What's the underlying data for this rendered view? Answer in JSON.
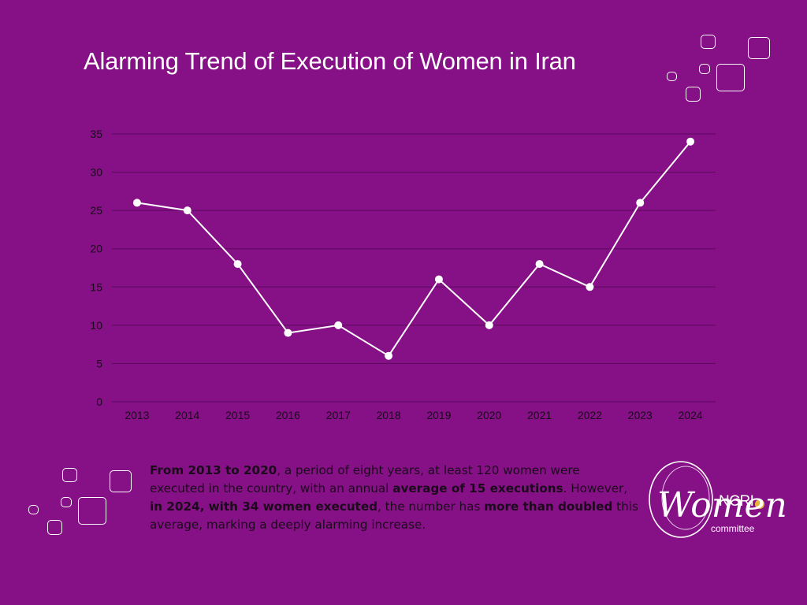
{
  "chart_data": {
    "type": "line",
    "title": "Alarming Trend of Execution of Women in Iran",
    "categories": [
      "2013",
      "2014",
      "2015",
      "2016",
      "2017",
      "2018",
      "2019",
      "2020",
      "2021",
      "2022",
      "2023",
      "2024"
    ],
    "values": [
      26,
      25,
      18,
      9,
      10,
      6,
      16,
      10,
      18,
      15,
      26,
      34
    ],
    "ylim": [
      0,
      35
    ],
    "yticks": [
      0,
      5,
      10,
      15,
      20,
      25,
      30,
      35
    ],
    "grid": true,
    "xlabel": "",
    "ylabel": ""
  },
  "caption": {
    "s1_bold": "From 2013 to 2020",
    "s1": ", a period of eight years, at least 120 women were executed in the country, with an annual ",
    "s2_bold": "average of 15 executions",
    "s2": ". However, ",
    "s3_bold": "in 2024, with 34 women executed",
    "s3": ", the number has ",
    "s4_bold": "more than doubled",
    "s4": " this average, marking a deeply alarming increase."
  },
  "logo": {
    "women": "Women",
    "ncri": "NCRI",
    "committee": "committee"
  },
  "colors": {
    "background": "#861086",
    "line": "#ffffff",
    "grid": "#5c0a5c",
    "tick_text": "#1a0a1a"
  }
}
